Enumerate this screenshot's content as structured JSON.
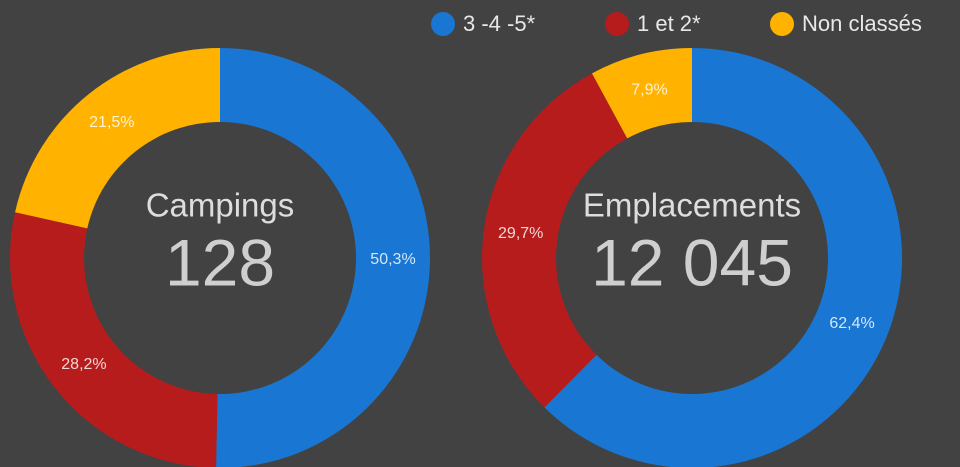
{
  "chart_data": [
    {
      "type": "pie",
      "donut": true,
      "title": "Campings",
      "total": 128,
      "categories": [
        "3 -4 -5*",
        "1 et 2*",
        "Non classés"
      ],
      "values": [
        50.3,
        28.2,
        21.5
      ],
      "value_labels": [
        "50,3%",
        "28,2%",
        "21,5%"
      ],
      "colors": [
        "#1976d2",
        "#b71c1c",
        "#ffb300"
      ]
    },
    {
      "type": "pie",
      "donut": true,
      "title": "Emplacements",
      "total": 12045,
      "total_label": "12 045",
      "categories": [
        "3 -4 -5*",
        "1 et 2*",
        "Non classés"
      ],
      "values": [
        62.4,
        29.7,
        7.9
      ],
      "value_labels": [
        "62,4%",
        "29,7%",
        "7,9%"
      ],
      "colors": [
        "#1976d2",
        "#b71c1c",
        "#ffb300"
      ]
    }
  ]
}
